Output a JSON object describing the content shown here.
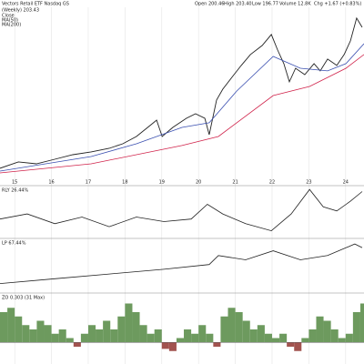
{
  "header": {
    "title": "Vectors Retail ETF  Nasdaq GS",
    "open": "Open 200.46",
    "high": "High 203.40",
    "low": "Low 196.77",
    "volume": "Volume 12.8K",
    "change": "Chg +1.67 (+0.83%)"
  },
  "chart_data": [
    {
      "type": "line",
      "title": "(Weekly) 203.43",
      "xlim": [
        2014.6,
        2024.5
      ],
      "ylim": [
        55,
        215
      ],
      "xticks": [
        {
          "value": 2015,
          "label": "15"
        },
        {
          "value": 2016,
          "label": "16"
        },
        {
          "value": 2017,
          "label": "17"
        },
        {
          "value": 2018,
          "label": "18"
        },
        {
          "value": 2019,
          "label": "19"
        },
        {
          "value": 2020,
          "label": "20"
        },
        {
          "value": 2021,
          "label": "21"
        },
        {
          "value": 2022,
          "label": "22"
        },
        {
          "value": 2023,
          "label": "23"
        },
        {
          "value": 2024,
          "label": "24"
        }
      ],
      "grid": true,
      "series": [
        {
          "name": "Close",
          "color": "#222222",
          "x": [
            2014.6,
            2015.1,
            2015.59,
            2016.09,
            2016.58,
            2017.08,
            2017.57,
            2017.94,
            2018.31,
            2018.68,
            2018.86,
            2019.01,
            2019.3,
            2019.67,
            2019.92,
            2020.17,
            2020.29,
            2020.49,
            2020.66,
            2020.91,
            2021.16,
            2021.41,
            2021.73,
            2021.98,
            2022.15,
            2022.32,
            2022.47,
            2022.64,
            2022.89,
            2023.14,
            2023.31,
            2023.51,
            2023.76,
            2023.96,
            2024.13,
            2024.3,
            2024.45
          ],
          "values": [
            63.6,
            69.6,
            67.8,
            72.1,
            76.4,
            79.0,
            82.4,
            86.7,
            93.5,
            103.8,
            108.9,
            93.5,
            102.1,
            110.6,
            114.9,
            110.6,
            95.2,
            127.8,
            138.0,
            149.2,
            160.3,
            170.6,
            179.1,
            189.4,
            174.8,
            162.0,
            144.9,
            157.7,
            151.7,
            162.0,
            155.2,
            166.3,
            160.3,
            170.6,
            183.4,
            204.8,
            196.2
          ]
        },
        {
          "name": "MA(50)",
          "color": "#3a4fb0",
          "x": [
            2014.6,
            2017.08,
            2018.31,
            2019.55,
            2020.29,
            2021.04,
            2022.03,
            2022.77,
            2023.51,
            2024.01,
            2024.5
          ],
          "values": [
            61.0,
            74.7,
            86.7,
            102.1,
            106.4,
            136.3,
            168.8,
            157.7,
            155.2,
            162.0,
            180.8
          ]
        },
        {
          "name": "MA(200)",
          "color": "#d0224a",
          "x": [
            2014.6,
            2017.08,
            2019.55,
            2020.54,
            2022.03,
            2023.02,
            2024.01,
            2024.5
          ],
          "values": [
            59.3,
            67.8,
            85.0,
            93.5,
            132.0,
            140.6,
            157.7,
            170.6
          ]
        }
      ]
    },
    {
      "type": "line",
      "title": "RLY 26.44%",
      "color": "#222222",
      "xlim": [
        2014.6,
        2024.5
      ],
      "ylim": [
        0,
        100
      ],
      "x": [
        2014.6,
        2015.34,
        2016.09,
        2016.83,
        2017.57,
        2018.31,
        2019.06,
        2019.8,
        2020.24,
        2020.66,
        2021.28,
        2021.98,
        2022.52,
        2023.02,
        2023.39,
        2023.76,
        2024.13,
        2024.45
      ],
      "values": [
        38,
        48,
        29,
        42,
        23,
        42,
        33,
        38,
        67,
        48,
        29,
        15,
        48,
        96,
        62,
        54,
        73,
        92
      ]
    },
    {
      "type": "line",
      "title": "LP 67.44%",
      "color": "#222222",
      "xlim": [
        2014.6,
        2024.5
      ],
      "ylim": [
        0,
        100
      ],
      "x": [
        2014.6,
        2016.09,
        2017.57,
        2019.06,
        2020.29,
        2020.54,
        2021.28,
        2022.03,
        2022.77,
        2023.51,
        2024.25,
        2024.45
      ],
      "values": [
        18,
        27,
        36,
        45,
        54,
        71,
        63,
        80,
        63,
        71,
        93,
        86
      ]
    },
    {
      "type": "bar",
      "title": "ZO 0.303 (31 Max)",
      "xlim": [
        2014.6,
        2024.5
      ],
      "ylim": [
        -0.5,
        1.1
      ],
      "color": "#6d9a5e",
      "negative_color": "#a2534f",
      "x": [
        2014.6,
        2014.8,
        2015.0,
        2015.2,
        2015.4,
        2015.6,
        2015.8,
        2016.0,
        2016.2,
        2016.4,
        2016.6,
        2016.8,
        2017.0,
        2017.2,
        2017.4,
        2017.6,
        2017.8,
        2018.0,
        2018.2,
        2018.4,
        2018.6,
        2018.8,
        2019.0,
        2019.2,
        2019.4,
        2019.6,
        2019.8,
        2020.0,
        2020.2,
        2020.4,
        2020.6,
        2020.8,
        2021.0,
        2021.2,
        2021.4,
        2021.6,
        2021.8,
        2022.0,
        2022.2,
        2022.4,
        2022.6,
        2022.8,
        2023.0,
        2023.2,
        2023.4,
        2023.6,
        2023.8,
        2024.0,
        2024.2,
        2024.4
      ],
      "values": [
        0.7,
        0.8,
        0.6,
        0.4,
        0.3,
        0.5,
        0.4,
        0.2,
        0.3,
        0.1,
        -0.1,
        0.2,
        0.4,
        0.3,
        0.5,
        0.3,
        0.6,
        0.9,
        0.7,
        0.4,
        0.2,
        0.3,
        -0.15,
        -0.2,
        0.1,
        0.3,
        0.2,
        0.4,
        0.2,
        -0.1,
        0.6,
        0.8,
        0.7,
        0.5,
        0.3,
        0.4,
        0.2,
        0.1,
        0.2,
        -0.1,
        -0.2,
        0.1,
        0.3,
        0.6,
        0.5,
        0.3,
        0.1,
        0.2,
        0.7,
        0.9
      ]
    }
  ]
}
